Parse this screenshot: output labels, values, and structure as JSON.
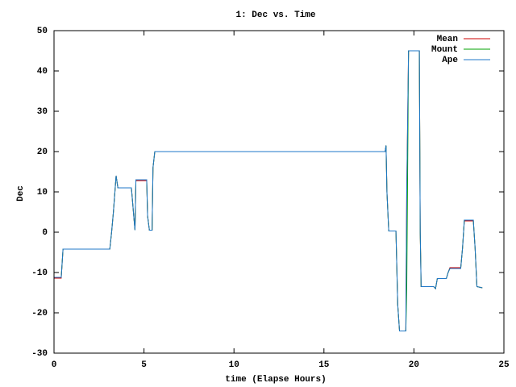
{
  "chart_data": {
    "type": "line",
    "title": "1: Dec vs. Time",
    "xlabel": "time (Elapse Hours)",
    "ylabel": "Dec",
    "x": [
      0,
      0.4,
      0.5,
      3.1,
      3.2,
      3.3,
      3.45,
      3.55,
      4.3,
      4.45,
      4.5,
      4.55,
      5.15,
      5.2,
      5.3,
      5.45,
      5.5,
      5.6,
      18.4,
      18.45,
      18.5,
      18.6,
      19.0,
      19.1,
      19.2,
      19.55,
      19.6,
      19.7,
      20.3,
      20.35,
      20.4,
      21.1,
      21.2,
      21.3,
      21.8,
      21.9,
      22.0,
      22.6,
      22.7,
      22.8,
      23.3,
      23.4,
      23.5,
      23.8
    ],
    "series": [
      {
        "name": "Mean",
        "color": "#cc0000",
        "values": [
          -11.4,
          -11.4,
          -4.2,
          -4.2,
          0,
          5,
          14,
          11,
          11,
          3,
          0.5,
          12.8,
          12.8,
          4,
          0.5,
          0.5,
          16,
          20,
          20,
          21.5,
          10,
          0.3,
          0.3,
          -18,
          -24.5,
          -24.5,
          10,
          45,
          45,
          0,
          -13.5,
          -13.5,
          -14,
          -11.5,
          -11.5,
          -10,
          -8.8,
          -8.8,
          -4,
          2.8,
          2.8,
          -4,
          -13.5,
          -13.8
        ]
      },
      {
        "name": "Mount",
        "color": "#00a000",
        "values": [
          -11.2,
          -11.2,
          -4.2,
          -4.2,
          0,
          5,
          14,
          11,
          11,
          3,
          0.5,
          13,
          13,
          4,
          0.5,
          0.5,
          16,
          20,
          20,
          21.5,
          10,
          0.3,
          0.3,
          -18,
          -24.5,
          -24.5,
          -14,
          45,
          45,
          0,
          -13.5,
          -13.5,
          -14,
          -11.5,
          -11.5,
          -10,
          -9,
          -9,
          -4,
          3,
          3,
          -4,
          -13.5,
          -13.8
        ]
      },
      {
        "name": "Ape",
        "color": "#1f77c8",
        "values": [
          -11.2,
          -11.2,
          -4.2,
          -4.2,
          0,
          5,
          14,
          11,
          11,
          3,
          0.5,
          13,
          13,
          4,
          0.5,
          0.5,
          16,
          20,
          20,
          21.5,
          10,
          0.3,
          0.3,
          -18,
          -24.5,
          -24.5,
          10,
          45,
          45,
          0,
          -13.5,
          -13.5,
          -14,
          -11.5,
          -11.5,
          -10,
          -9,
          -9,
          -4,
          3,
          3,
          -4,
          -13.5,
          -13.8
        ]
      }
    ],
    "xlim": [
      0,
      25
    ],
    "xticks": [
      0,
      5,
      10,
      15,
      20,
      25
    ],
    "ylim": [
      -30,
      50
    ],
    "yticks": [
      -30,
      -20,
      -10,
      0,
      10,
      20,
      30,
      40,
      50
    ],
    "grid": false,
    "legend": "top-right"
  }
}
